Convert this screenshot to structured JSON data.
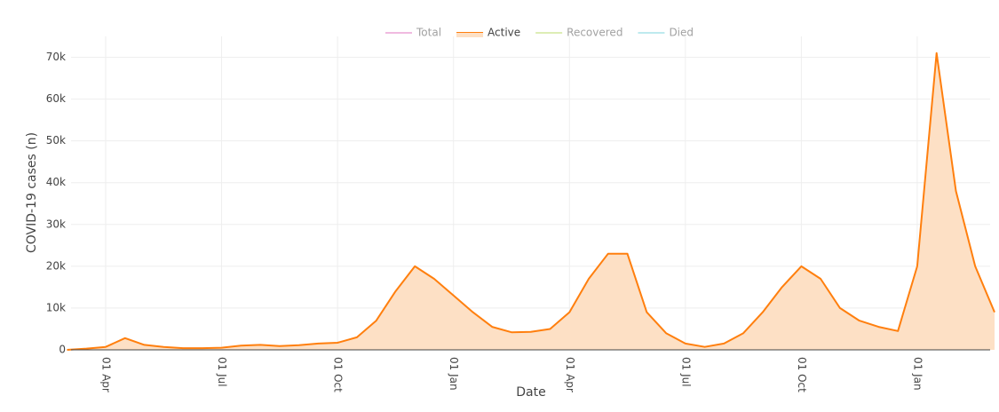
{
  "chart_data": {
    "type": "area",
    "xlabel": "Date",
    "ylabel": "COVID-19 cases (n)",
    "categories": [
      null,
      null,
      "01 Apr",
      null,
      null,
      null,
      null,
      null,
      "01 Jul",
      null,
      null,
      null,
      null,
      null,
      "01 Oct",
      null,
      null,
      null,
      null,
      null,
      "01 Jan",
      null,
      null,
      null,
      null,
      null,
      "01 Apr",
      null,
      null,
      null,
      null,
      null,
      "01 Jul",
      null,
      null,
      null,
      null,
      null,
      "01 Oct",
      null,
      null,
      null,
      null,
      null,
      "01 Jan",
      null,
      null,
      null,
      null
    ],
    "series": [
      {
        "name": "Total",
        "color": "#e377c2",
        "visible": false
      },
      {
        "name": "Active",
        "color": "#ff7f0e",
        "fill": "#fde0c5",
        "visible": true,
        "values": [
          0,
          300,
          700,
          2800,
          1200,
          700,
          400,
          400,
          500,
          1000,
          1200,
          900,
          1100,
          1500,
          1700,
          3000,
          7000,
          14000,
          20000,
          17000,
          13000,
          9000,
          5500,
          4200,
          4300,
          5000,
          9000,
          17000,
          23000,
          23000,
          9000,
          4000,
          1500,
          700,
          1500,
          4000,
          9000,
          15000,
          20000,
          17000,
          10000,
          7000,
          5500,
          4500,
          20000,
          71000,
          38000,
          20000,
          9000
        ]
      },
      {
        "name": "Recovered",
        "color": "#bcdc6e",
        "visible": false
      },
      {
        "name": "Died",
        "color": "#7fd6df",
        "visible": false
      }
    ],
    "ylim": [
      0,
      75000
    ],
    "yticks": [
      0,
      {
        "value": 10000,
        "label": "10k"
      },
      {
        "value": 20000,
        "label": "20k"
      },
      {
        "value": 30000,
        "label": "30k"
      },
      {
        "value": 40000,
        "label": "40k"
      },
      {
        "value": 50000,
        "label": "50k"
      },
      {
        "value": 60000,
        "label": "60k"
      },
      {
        "value": 70000,
        "label": "70k"
      }
    ],
    "grid": true,
    "legend": "top"
  }
}
